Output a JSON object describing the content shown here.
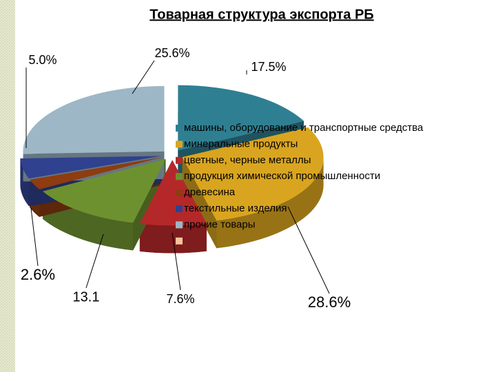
{
  "chart_data": {
    "type": "pie",
    "title": "Товарная структура экспорта РБ",
    "categories": [
      "машины, оборудование и транспортные средства",
      "минеральные продукты",
      "цветные, черные металлы",
      "продукция химической промышленности",
      "древесина",
      "текстильные изделия",
      "прочие товары",
      null
    ],
    "values": [
      17.5,
      28.6,
      7.6,
      13.1,
      2.6,
      5.0,
      25.6,
      null
    ],
    "value_labels": [
      "17.5%",
      "28.6%",
      "7.6%",
      "13.1",
      "2.6%",
      "5.0%",
      "25.6%",
      null
    ],
    "colors": [
      "#2f7f92",
      "#d9a520",
      "#b5282a",
      "#6e9130",
      "#8e3c10",
      "#2f418f",
      "#9db7c6",
      "#f6c39c"
    ],
    "legend": "right"
  }
}
